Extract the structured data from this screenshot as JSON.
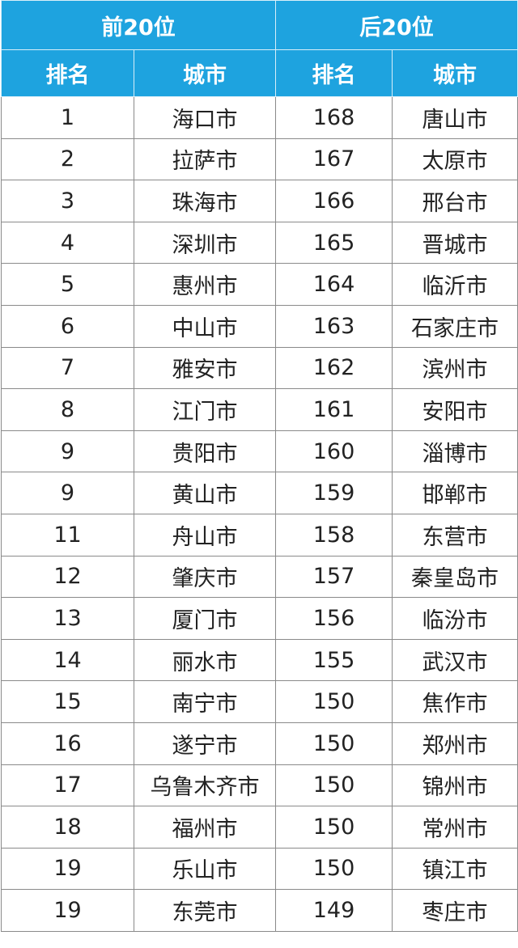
{
  "table": {
    "groups": [
      "前20位",
      "后20位"
    ],
    "columns": [
      "排名",
      "城市",
      "排名",
      "城市"
    ],
    "rows": [
      [
        1,
        "海口市",
        168,
        "唐山市"
      ],
      [
        2,
        "拉萨市",
        167,
        "太原市"
      ],
      [
        3,
        "珠海市",
        166,
        "邢台市"
      ],
      [
        4,
        "深圳市",
        165,
        "晋城市"
      ],
      [
        5,
        "惠州市",
        164,
        "临沂市"
      ],
      [
        6,
        "中山市",
        163,
        "石家庄市"
      ],
      [
        7,
        "雅安市",
        162,
        "滨州市"
      ],
      [
        8,
        "江门市",
        161,
        "安阳市"
      ],
      [
        9,
        "贵阳市",
        160,
        "淄博市"
      ],
      [
        9,
        "黄山市",
        159,
        "邯郸市"
      ],
      [
        11,
        "舟山市",
        158,
        "东营市"
      ],
      [
        12,
        "肇庆市",
        157,
        "秦皇岛市"
      ],
      [
        13,
        "厦门市",
        156,
        "临汾市"
      ],
      [
        14,
        "丽水市",
        155,
        "武汉市"
      ],
      [
        15,
        "南宁市",
        150,
        "焦作市"
      ],
      [
        16,
        "遂宁市",
        150,
        "郑州市"
      ],
      [
        17,
        "乌鲁木齐市",
        150,
        "锦州市"
      ],
      [
        18,
        "福州市",
        150,
        "常州市"
      ],
      [
        19,
        "乐山市",
        150,
        "镇江市"
      ],
      [
        19,
        "东莞市",
        149,
        "枣庄市"
      ]
    ]
  }
}
